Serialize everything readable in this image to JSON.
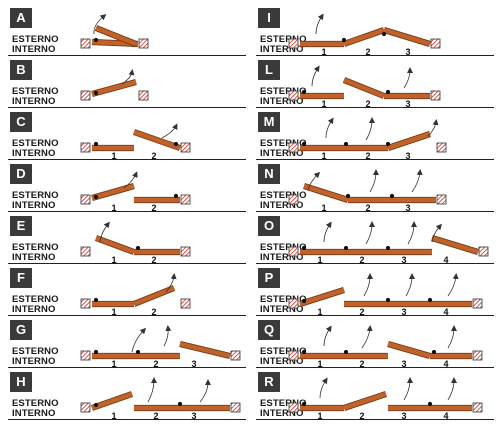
{
  "labels": {
    "outside": "ESTERNO",
    "inside": "INTERNO"
  },
  "colors": {
    "panel": "#c0622a",
    "panel_edge": "#7a3a14",
    "wall_fill": "#ffffff",
    "wall_hatch": "#c4322a",
    "badge": "#3a3a3a",
    "pivot": "#111111"
  },
  "icons": {
    "wall": "hatched-wall-icon",
    "pivot": "pivot-dot-icon",
    "swing": "swing-arrow-icon"
  },
  "configs": [
    {
      "letter": "A",
      "numbers": []
    },
    {
      "letter": "B",
      "numbers": []
    },
    {
      "letter": "C",
      "numbers": [
        "1",
        "2"
      ]
    },
    {
      "letter": "D",
      "numbers": [
        "1",
        "2"
      ]
    },
    {
      "letter": "E",
      "numbers": [
        "1",
        "2"
      ]
    },
    {
      "letter": "F",
      "numbers": [
        "1",
        "2"
      ]
    },
    {
      "letter": "G",
      "numbers": [
        "1",
        "2",
        "3"
      ]
    },
    {
      "letter": "H",
      "numbers": [
        "1",
        "2",
        "3"
      ]
    },
    {
      "letter": "I",
      "numbers": [
        "1",
        "2",
        "3"
      ]
    },
    {
      "letter": "L",
      "numbers": [
        "1",
        "2",
        "3"
      ]
    },
    {
      "letter": "M",
      "numbers": [
        "1",
        "2",
        "3"
      ]
    },
    {
      "letter": "N",
      "numbers": [
        "1",
        "2",
        "3"
      ]
    },
    {
      "letter": "O",
      "numbers": [
        "1",
        "2",
        "3",
        "4"
      ]
    },
    {
      "letter": "P",
      "numbers": [
        "1",
        "2",
        "3",
        "4"
      ]
    },
    {
      "letter": "Q",
      "numbers": [
        "1",
        "2",
        "3",
        "4"
      ]
    },
    {
      "letter": "R",
      "numbers": [
        "1",
        "2",
        "3",
        "4"
      ]
    }
  ]
}
